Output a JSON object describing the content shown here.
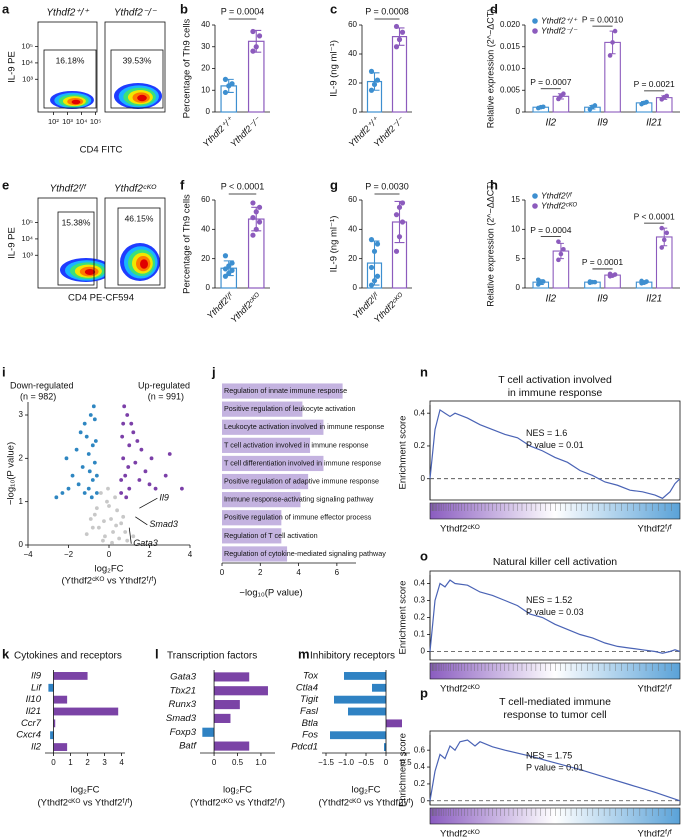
{
  "chart_data": [
    {
      "type": "flow",
      "panel": "a",
      "xlabel": "CD4 FITC",
      "ylabel": "IL-9 PE",
      "samples": [
        "Ythdf2⁺/⁺",
        "Ythdf2⁻/⁻"
      ],
      "values": [
        16.18,
        39.53
      ],
      "value_labels": [
        "16.18%",
        "39.53%"
      ],
      "xlim": [
        0.9,
        5.1
      ],
      "xticks": [
        {
          "value": 2,
          "label": "10²"
        },
        {
          "value": 3,
          "label": "10³"
        },
        {
          "value": 4,
          "label": "10⁴"
        },
        {
          "value": 5,
          "label": "10⁵"
        }
      ],
      "ylim": [
        1.0,
        6.5
      ],
      "yticks": [
        {
          "value": 3,
          "label": "10³"
        },
        {
          "value": 4,
          "label": "10⁴"
        },
        {
          "value": 5,
          "label": "10⁵"
        }
      ]
    },
    {
      "type": "bar",
      "panel": "b",
      "ylabel": "Percentage of Th9 cells",
      "categories": [
        "Ythdf2⁺/⁺",
        "Ythdf2⁻/⁻"
      ],
      "colors": [
        "#3d8fd0",
        "#8c5bbd"
      ],
      "values": [
        12,
        32.5
      ],
      "errors": [
        3,
        5
      ],
      "points": [
        [
          9,
          12,
          13,
          15
        ],
        [
          28,
          30,
          35,
          37
        ]
      ],
      "p_label": "P = 0.0004",
      "ylim": [
        0,
        40
      ],
      "yticks": [
        0,
        10,
        20,
        30,
        40
      ]
    },
    {
      "type": "bar",
      "panel": "c",
      "ylabel": "IL-9 (ng ml⁻¹)",
      "categories": [
        "Ythdf2⁺/⁺",
        "Ythdf2⁻/⁻"
      ],
      "colors": [
        "#3d8fd0",
        "#8c5bbd"
      ],
      "values": [
        21,
        52
      ],
      "errors": [
        6,
        6
      ],
      "points": [
        [
          15,
          19,
          22,
          28
        ],
        [
          45,
          50,
          55,
          59
        ]
      ],
      "p_label": "P = 0.0008",
      "ylim": [
        0,
        60
      ],
      "yticks": [
        0,
        20,
        40,
        60
      ]
    },
    {
      "type": "grouped_bar",
      "panel": "d",
      "ylabel": "Relative expression (2^−ΔCT)",
      "categories": [
        "Il2",
        "Il9",
        "Il21"
      ],
      "series": [
        {
          "name": "Ythdf2⁺/⁺",
          "color": "#3d8fd0",
          "values": [
            0.0011,
            0.0011,
            0.0021
          ],
          "errors": [
            0.0002,
            0.0004,
            0.0003
          ],
          "points": [
            [
              0.0009,
              0.0011,
              0.0012
            ],
            [
              0.0006,
              0.0012,
              0.0015
            ],
            [
              0.0018,
              0.0021,
              0.0023
            ]
          ]
        },
        {
          "name": "Ythdf2⁻/⁻",
          "color": "#8c5bbd",
          "values": [
            0.0036,
            0.016,
            0.0033
          ],
          "errors": [
            0.0006,
            0.0026,
            0.0004
          ],
          "points": [
            [
              0.003,
              0.0037,
              0.0042
            ],
            [
              0.013,
              0.016,
              0.0186
            ],
            [
              0.0029,
              0.0034,
              0.0037
            ]
          ]
        }
      ],
      "p_labels": [
        "P = 0.0007",
        "P = 0.0010",
        "P = 0.0021"
      ],
      "ylim": [
        0,
        0.02
      ],
      "yticks": [
        0,
        0.005,
        {
          "value": 0.01,
          "label": "0.010"
        },
        0.015,
        {
          "value": 0.02,
          "label": "0.020"
        }
      ]
    },
    {
      "type": "flow",
      "panel": "e",
      "xlabel": "CD4 PE-CF594",
      "ylabel": "IL-9 PE",
      "samples": [
        "Ythdf2ᶠ/ᶠ",
        "Ythdf2ᶜᴷᴼ"
      ],
      "values": [
        15.38,
        46.15
      ],
      "value_labels": [
        "15.38%",
        "46.15%"
      ],
      "ylim": [
        1.0,
        6.5
      ],
      "yticks": [
        {
          "value": 3,
          "label": "10³"
        },
        {
          "value": 4,
          "label": "10⁴"
        },
        {
          "value": 5,
          "label": "10⁵"
        }
      ]
    },
    {
      "type": "bar",
      "panel": "f",
      "ylabel": "Percentage of Th9 cells",
      "categories": [
        "Ythdf2ᶠ/ᶠ",
        "Ythdf2ᶜᴷᴼ"
      ],
      "colors": [
        "#3d8fd0",
        "#8c5bbd"
      ],
      "values": [
        13.5,
        47
      ],
      "errors": [
        5,
        8
      ],
      "points": [
        [
          8,
          10,
          12,
          13,
          15,
          17,
          22
        ],
        [
          36,
          40,
          45,
          48,
          52,
          55,
          58
        ]
      ],
      "p_label": "P < 0.0001",
      "ylim": [
        0,
        60
      ],
      "yticks": [
        0,
        20,
        40,
        60
      ]
    },
    {
      "type": "bar",
      "panel": "g",
      "ylabel": "IL-9 (ng ml⁻¹)",
      "categories": [
        "Ythdf2ᶠ/ᶠ",
        "Ythdf2ᶜᴷᴼ"
      ],
      "colors": [
        "#3d8fd0",
        "#8c5bbd"
      ],
      "values": [
        17,
        45
      ],
      "errors": [
        15,
        14
      ],
      "points": [
        [
          2,
          5,
          8,
          14,
          25,
          30,
          33
        ],
        [
          25,
          35,
          45,
          50,
          55,
          58
        ]
      ],
      "p_label": "P = 0.0030",
      "ylim": [
        0,
        60
      ],
      "yticks": [
        0,
        20,
        40,
        60
      ]
    },
    {
      "type": "grouped_bar",
      "panel": "h",
      "ylabel": "Relative expression (2^−ΔΔCT)",
      "categories": [
        "Il2",
        "Il9",
        "Il21"
      ],
      "series": [
        {
          "name": "Ythdf2ᶠ/ᶠ",
          "color": "#3d8fd0",
          "values": [
            1.0,
            1.0,
            1.0
          ],
          "errors": [
            0.4,
            0.1,
            0.25
          ],
          "points": [
            [
              0.6,
              0.9,
              1.1,
              1.4
            ],
            [
              0.9,
              1.0,
              1.0,
              1.1
            ],
            [
              0.8,
              0.9,
              1.1,
              1.2
            ]
          ]
        },
        {
          "name": "Ythdf2ᶜᴷᴼ",
          "color": "#8c5bbd",
          "values": [
            6.3,
            2.2,
            8.7
          ],
          "errors": [
            1.3,
            0.2,
            1.5
          ],
          "points": [
            [
              4.8,
              5.8,
              6.6,
              7.9
            ],
            [
              2.0,
              2.1,
              2.3,
              2.4
            ],
            [
              6.9,
              8.2,
              9.4,
              10.2
            ]
          ]
        }
      ],
      "p_labels": [
        "P = 0.0004",
        "P = 0.0001",
        "P < 0.0001"
      ],
      "ylim": [
        0,
        15
      ],
      "yticks": [
        0,
        5,
        10,
        15
      ]
    },
    {
      "type": "scatter",
      "panel": "i",
      "xlabel": "log₂FC",
      "xlabel_note": "(Ythdf2ᶜᴷᴼ vs Ythdf2ᶠ/ᶠ)",
      "ylabel": "−log₁₀(P value)",
      "series": [
        {
          "name": "Down-regulated",
          "count_label": "(n = 982)",
          "color": "#2e86c1",
          "x": [
            -0.6,
            -0.8,
            -1.0,
            -1.2,
            -0.7,
            -0.9,
            -1.5,
            -1.8,
            -2.0,
            -2.3,
            -1.1,
            -0.65,
            -0.75,
            -1.3,
            -1.6,
            -0.85,
            -1.0,
            -2.6,
            -0.7,
            -1.4,
            -0.95,
            -1.2,
            -0.6,
            -2.1,
            -0.8
          ],
          "y": [
            1.2,
            1.5,
            2.1,
            2.8,
            1.9,
            3.0,
            1.4,
            1.6,
            1.3,
            1.2,
            2.5,
            2.4,
            3.2,
            1.8,
            2.2,
            1.1,
            1.3,
            1.1,
            2.9,
            2.6,
            1.7,
            1.2,
            1.6,
            2.0,
            2.3
          ]
        },
        {
          "name": "Up-regulated",
          "count_label": "(n = 991)",
          "color": "#7b3fa8",
          "x": [
            0.6,
            0.8,
            1.0,
            1.2,
            0.7,
            0.9,
            1.5,
            1.8,
            2.0,
            2.3,
            1.1,
            0.65,
            0.75,
            1.3,
            1.6,
            0.85,
            1.0,
            2.8,
            0.7,
            1.4,
            0.95,
            3.6,
            0.6,
            2.1,
            3.0
          ],
          "y": [
            1.2,
            1.6,
            2.3,
            2.6,
            2.0,
            3.0,
            1.5,
            1.7,
            1.4,
            1.3,
            2.8,
            2.5,
            3.2,
            1.9,
            2.2,
            1.1,
            1.3,
            1.6,
            2.8,
            2.4,
            1.8,
            1.3,
            1.5,
            2.0,
            2.1
          ]
        },
        {
          "color": "#c8c8c8",
          "x": [
            -0.3,
            0.2,
            0.1,
            -0.5,
            0.4,
            -0.1,
            0.6,
            -0.7,
            0.3,
            -0.2,
            0.0,
            0.5,
            -0.4,
            0.8,
            -0.8,
            0.15,
            -0.25,
            1.2,
            -1.1,
            0.35,
            -0.6,
            0.7,
            -0.05,
            0.9,
            -0.9
          ],
          "y": [
            0.1,
            0.3,
            0.6,
            0.4,
            0.8,
            1.0,
            0.5,
            0.7,
            1.1,
            0.2,
            0.9,
            0.15,
            1.2,
            0.3,
            0.4,
            0.05,
            0.55,
            0.2,
            0.25,
            0.45,
            0.85,
            0.65,
            1.3,
            0.1,
            0.6
          ]
        }
      ],
      "annotations": [
        {
          "text": "Il9",
          "x": 1.5,
          "y": 0.85
        },
        {
          "text": "Smad3",
          "x": 1.3,
          "y": 0.65
        },
        {
          "text": "Gata3",
          "x": 1.0,
          "y": 0.4
        }
      ],
      "xlim": [
        -4,
        4
      ],
      "xticks": [
        {
          "value": -4,
          "label": "−4"
        },
        {
          "value": -2,
          "label": "−2"
        },
        0,
        2,
        4
      ],
      "ylim": [
        0,
        3.3
      ],
      "yticks": [
        0,
        1,
        2,
        3
      ]
    },
    {
      "type": "hbar_terms",
      "panel": "j",
      "xlabel": "−log₁₀(P value)",
      "color": "#c4b3e0",
      "categories": [
        "Regulation of innate immune response",
        "Positive regulation of leukocyte activation",
        "Leukocyte activation involved in immune response",
        "T cell activation involved in immune response",
        "T cell differentiation involved in immune response",
        "Positive regulation of adaptive immune response",
        "Immune response-activating signaling pathway",
        "Positive regulation of immune effector process",
        "Regulation of T cell activation",
        "Regulation of cytokine-mediated signaling pathway"
      ],
      "values": [
        6.3,
        4.2,
        5.3,
        4.6,
        5.3,
        4.5,
        4.1,
        3.1,
        3.1,
        3.4
      ],
      "xlim": [
        0,
        7
      ],
      "xticks": [
        0,
        2,
        4,
        6
      ]
    },
    {
      "type": "gsea",
      "panel": "n",
      "title": [
        "T cell activation involved",
        "in immune response"
      ],
      "ylabel": "Enrichment score",
      "nes_label": "NES = 1.6",
      "p_label": "P value = 0.01",
      "color": "#4a63b5",
      "x": [
        0,
        2,
        4,
        6,
        8,
        10,
        15,
        20,
        25,
        30,
        35,
        40,
        45,
        50,
        55,
        60,
        65,
        70,
        75,
        80,
        85,
        90,
        93,
        96,
        98,
        100
      ],
      "values": [
        0,
        0.3,
        0.42,
        0.4,
        0.38,
        0.4,
        0.37,
        0.33,
        0.3,
        0.27,
        0.25,
        0.2,
        0.17,
        0.13,
        0.1,
        0.05,
        0.02,
        -0.02,
        -0.04,
        -0.07,
        -0.08,
        -0.1,
        -0.12,
        -0.08,
        -0.03,
        0
      ],
      "group_labels": [
        "Ythdf2ᶜᴷᴼ",
        "Ythdf2ᶠ/ᶠ"
      ],
      "xlim": [
        0,
        100
      ],
      "ylim": [
        -0.13,
        0.45
      ],
      "yticks": [
        0,
        0.2,
        0.4
      ]
    },
    {
      "type": "gsea",
      "panel": "o",
      "title": [
        "Natural killer cell activation"
      ],
      "ylabel": "Enrichment score",
      "nes_label": "NES = 1.52",
      "p_label": "P value = 0.03",
      "color": "#4a63b5",
      "x": [
        0,
        2,
        4,
        6,
        8,
        10,
        15,
        20,
        25,
        30,
        35,
        40,
        45,
        50,
        55,
        60,
        65,
        70,
        75,
        80,
        85,
        90,
        93,
        96,
        98,
        100
      ],
      "values": [
        0,
        0.3,
        0.4,
        0.38,
        0.42,
        0.4,
        0.39,
        0.35,
        0.33,
        0.3,
        0.27,
        0.22,
        0.2,
        0.16,
        0.13,
        0.1,
        0.08,
        0.05,
        0.03,
        0.02,
        0.01,
        0.0,
        -0.01,
        0,
        0.01,
        0
      ],
      "group_labels": [
        "Ythdf2ᶜᴷᴼ",
        "Ythdf2ᶠ/ᶠ"
      ],
      "xlim": [
        0,
        100
      ],
      "ylim": [
        -0.05,
        0.45
      ],
      "yticks": [
        0,
        0.1,
        0.2,
        0.3,
        0.4
      ]
    },
    {
      "type": "gsea",
      "panel": "p",
      "title": [
        "T cell-mediated immune",
        "response to tumor cell"
      ],
      "ylabel": "Enrichment score",
      "nes_label": "NES = 1.75",
      "p_label": "P value = 0.01",
      "color": "#4a63b5",
      "x": [
        0,
        2,
        4,
        6,
        8,
        10,
        12,
        15,
        18,
        20,
        25,
        30,
        40,
        50,
        60,
        70,
        80,
        90,
        100
      ],
      "values": [
        0,
        0.35,
        0.55,
        0.5,
        0.65,
        0.6,
        0.7,
        0.72,
        0.65,
        0.7,
        0.64,
        0.6,
        0.53,
        0.45,
        0.37,
        0.28,
        0.19,
        0.1,
        0
      ],
      "group_labels": [
        "Ythdf2ᶜᴷᴼ",
        "Ythdf2ᶠ/ᶠ"
      ],
      "xlim": [
        0,
        100
      ],
      "ylim": [
        -0.05,
        0.78
      ],
      "yticks": [
        0,
        0.2,
        0.4,
        0.6
      ]
    },
    {
      "type": "hbar",
      "panel": "k",
      "title": "Cytokines and receptors",
      "xlabel": "log₂FC",
      "xlabel_note": "(Ythdf2ᶜᴷᴼ vs Ythdf2ᶠ/ᶠ)",
      "pos_color": "#7b43a6",
      "neg_color": "#2f82c3",
      "categories": [
        "Il9",
        "Lif",
        "Il10",
        "Il21",
        "Ccr7",
        "Cxcr4",
        "Il2"
      ],
      "values": [
        2.0,
        -0.3,
        0.8,
        3.8,
        0.1,
        -0.2,
        0.8
      ],
      "xlim": [
        -0.5,
        4.2
      ],
      "xticks": [
        0,
        1,
        2,
        3,
        4
      ]
    },
    {
      "type": "hbar",
      "panel": "l",
      "title": "Transcription factors",
      "xlabel": "log₂FC",
      "xlabel_note": "(Ythdf2ᶜᴷᴼ vs Ythdf2ᶠ/ᶠ)",
      "pos_color": "#7b43a6",
      "neg_color": "#2f82c3",
      "categories": [
        "Gata3",
        "Tbx21",
        "Runx3",
        "Smad3",
        "Foxp3",
        "Batf"
      ],
      "values": [
        0.75,
        1.15,
        0.55,
        0.35,
        -0.25,
        0.75
      ],
      "xlim": [
        -0.3,
        1.3
      ],
      "xticks": [
        0,
        0.5,
        {
          "value": 1,
          "label": "1.0"
        }
      ]
    },
    {
      "type": "hbar",
      "panel": "m",
      "title": "Inhibitory receptors",
      "xlabel": "log₂FC",
      "xlabel_note": "(Ythdf2ᶜᴷᴼ vs Ythdf2ᶠ/ᶠ)",
      "pos_color": "#7b43a6",
      "neg_color": "#2f82c3",
      "categories": [
        "Tox",
        "Ctla4",
        "Tigit",
        "Fasl",
        "Btla",
        "Fos",
        "Pdcd1"
      ],
      "values": [
        -1.05,
        -0.35,
        -1.3,
        -0.95,
        0.4,
        -1.4,
        -0.05
      ],
      "xlim": [
        -1.6,
        0.6
      ],
      "xticks": [
        {
          "value": -1.5,
          "label": "−1.5"
        },
        {
          "value": -1,
          "label": "−1.0"
        },
        {
          "value": -0.5,
          "label": "−0.5"
        },
        0,
        0.5
      ]
    }
  ]
}
